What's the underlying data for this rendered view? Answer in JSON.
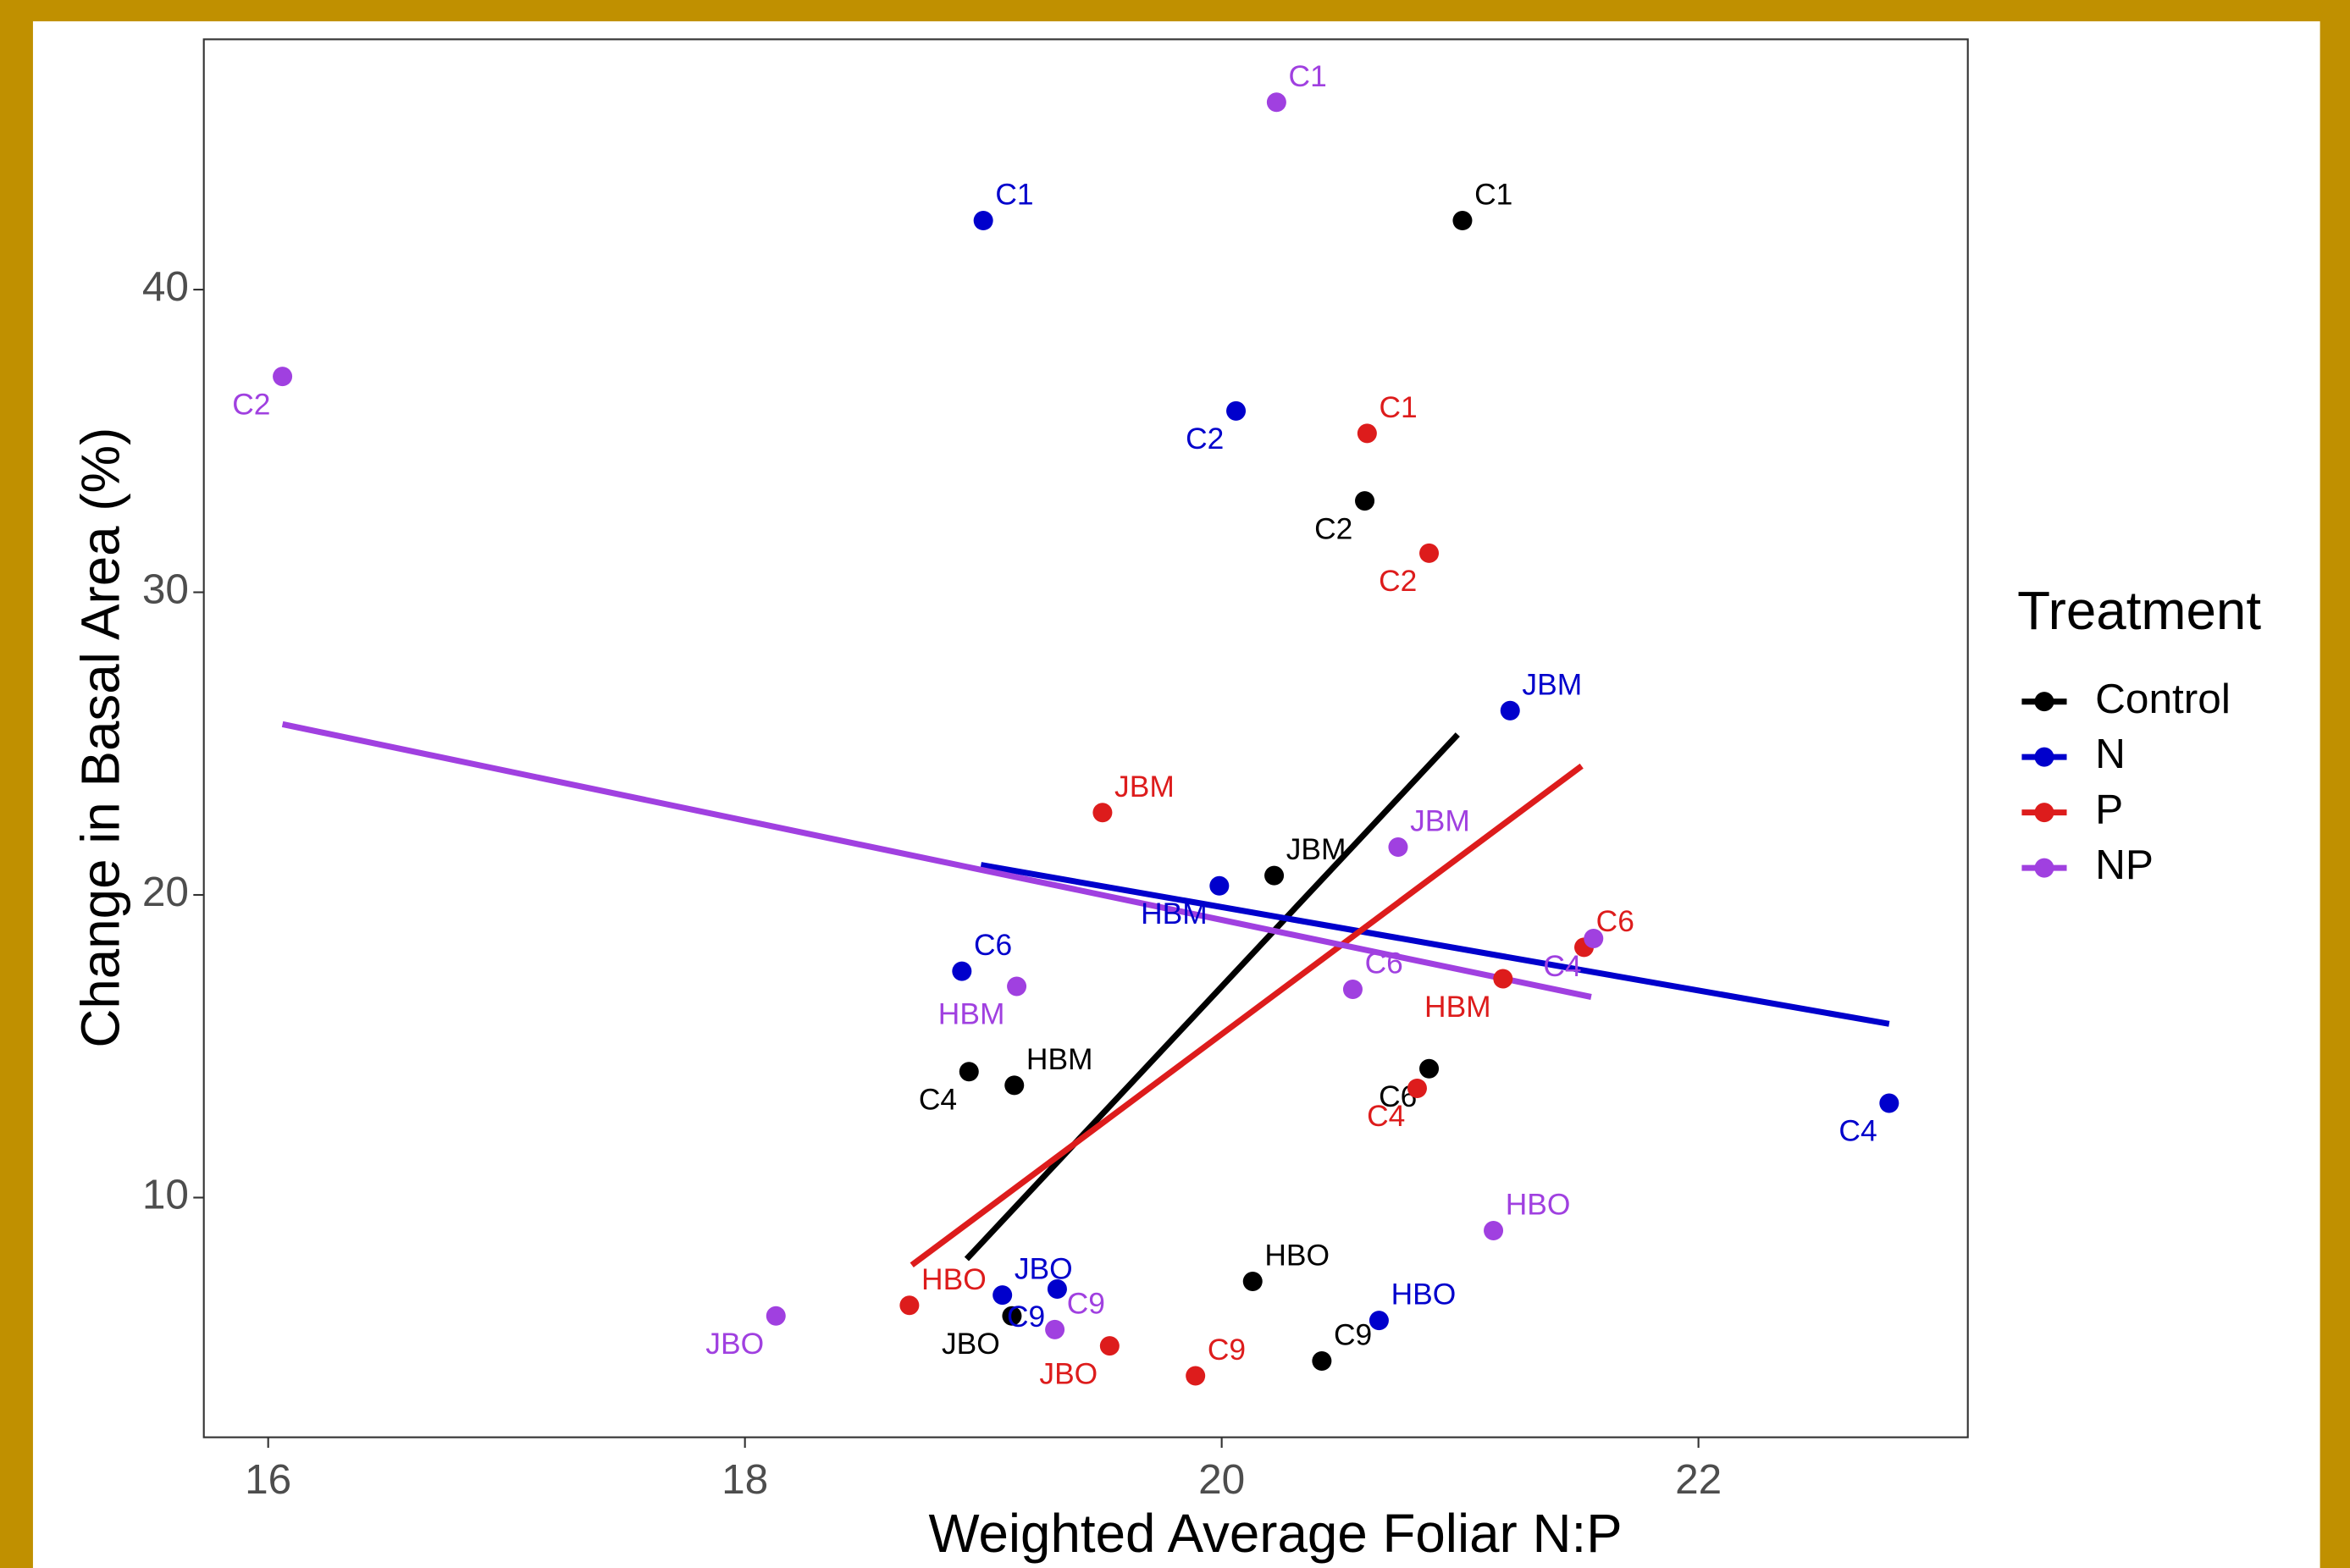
{
  "chart_data": {
    "type": "scatter",
    "x_label": "Weighted Average Foliar N:P",
    "y_label": "Change in Basal Area (%)",
    "legend_title": "Treatment",
    "legend_position": "right",
    "grid": false,
    "xlim": [
      15.73,
      23.13
    ],
    "ylim": [
      2.08,
      48.27
    ],
    "xticks": [
      16,
      18,
      20,
      22
    ],
    "yticks": [
      10,
      20,
      30,
      40
    ],
    "series": [
      {
        "name": "Control",
        "color": "#000000",
        "point_labels": [
          "C1",
          "C2",
          "JBM",
          "C4",
          "HBM",
          "C6",
          "HBO",
          "JBO",
          "C9"
        ],
        "x": [
          21.01,
          20.6,
          20.22,
          18.94,
          19.13,
          20.87,
          20.13,
          19.12,
          20.42
        ],
        "values": [
          42.28,
          33.02,
          20.64,
          14.16,
          13.71,
          14.26,
          7.23,
          6.09,
          4.6
        ],
        "fit": {
          "x": [
            18.93,
            20.99
          ],
          "values": [
            7.97,
            25.3
          ]
        }
      },
      {
        "name": "N",
        "color": "#0000cc",
        "point_labels": [
          "C1",
          "C2",
          "JBM",
          "HBM",
          "C6",
          "C4",
          "JBO",
          "C9",
          "HBO"
        ],
        "x": [
          19.0,
          20.06,
          21.21,
          19.99,
          18.91,
          22.8,
          19.08,
          19.31,
          20.66
        ],
        "values": [
          42.28,
          35.99,
          26.09,
          20.3,
          17.48,
          13.12,
          6.78,
          6.98,
          5.94
        ],
        "fit": {
          "x": [
            18.99,
            22.8
          ],
          "values": [
            20.99,
            15.74
          ]
        }
      },
      {
        "name": "P",
        "color": "#dd1c1c",
        "point_labels": [
          "C1",
          "C2",
          "JBM",
          "HBM",
          "C6",
          "C4",
          "HBO",
          "JBO",
          "C9"
        ],
        "x": [
          20.61,
          20.87,
          19.5,
          21.18,
          21.52,
          20.82,
          18.69,
          19.53,
          19.89
        ],
        "values": [
          35.25,
          31.29,
          22.72,
          17.23,
          18.27,
          13.61,
          6.44,
          5.1,
          4.11
        ],
        "fit": {
          "x": [
            18.7,
            21.51
          ],
          "values": [
            7.77,
            24.26
          ]
        }
      },
      {
        "name": "NP",
        "color": "#a040e0",
        "point_labels": [
          "C1",
          "C2",
          "JBM",
          "HBM",
          "C6",
          "C4",
          "HBO",
          "JBO",
          "C9"
        ],
        "x": [
          20.23,
          16.06,
          20.74,
          19.14,
          20.55,
          21.56,
          21.14,
          18.13,
          19.3
        ],
        "values": [
          46.19,
          37.13,
          21.58,
          16.98,
          16.88,
          18.56,
          8.91,
          6.09,
          5.64
        ],
        "fit": {
          "x": [
            16.06,
            21.55
          ],
          "values": [
            25.64,
            16.63
          ]
        }
      }
    ]
  }
}
